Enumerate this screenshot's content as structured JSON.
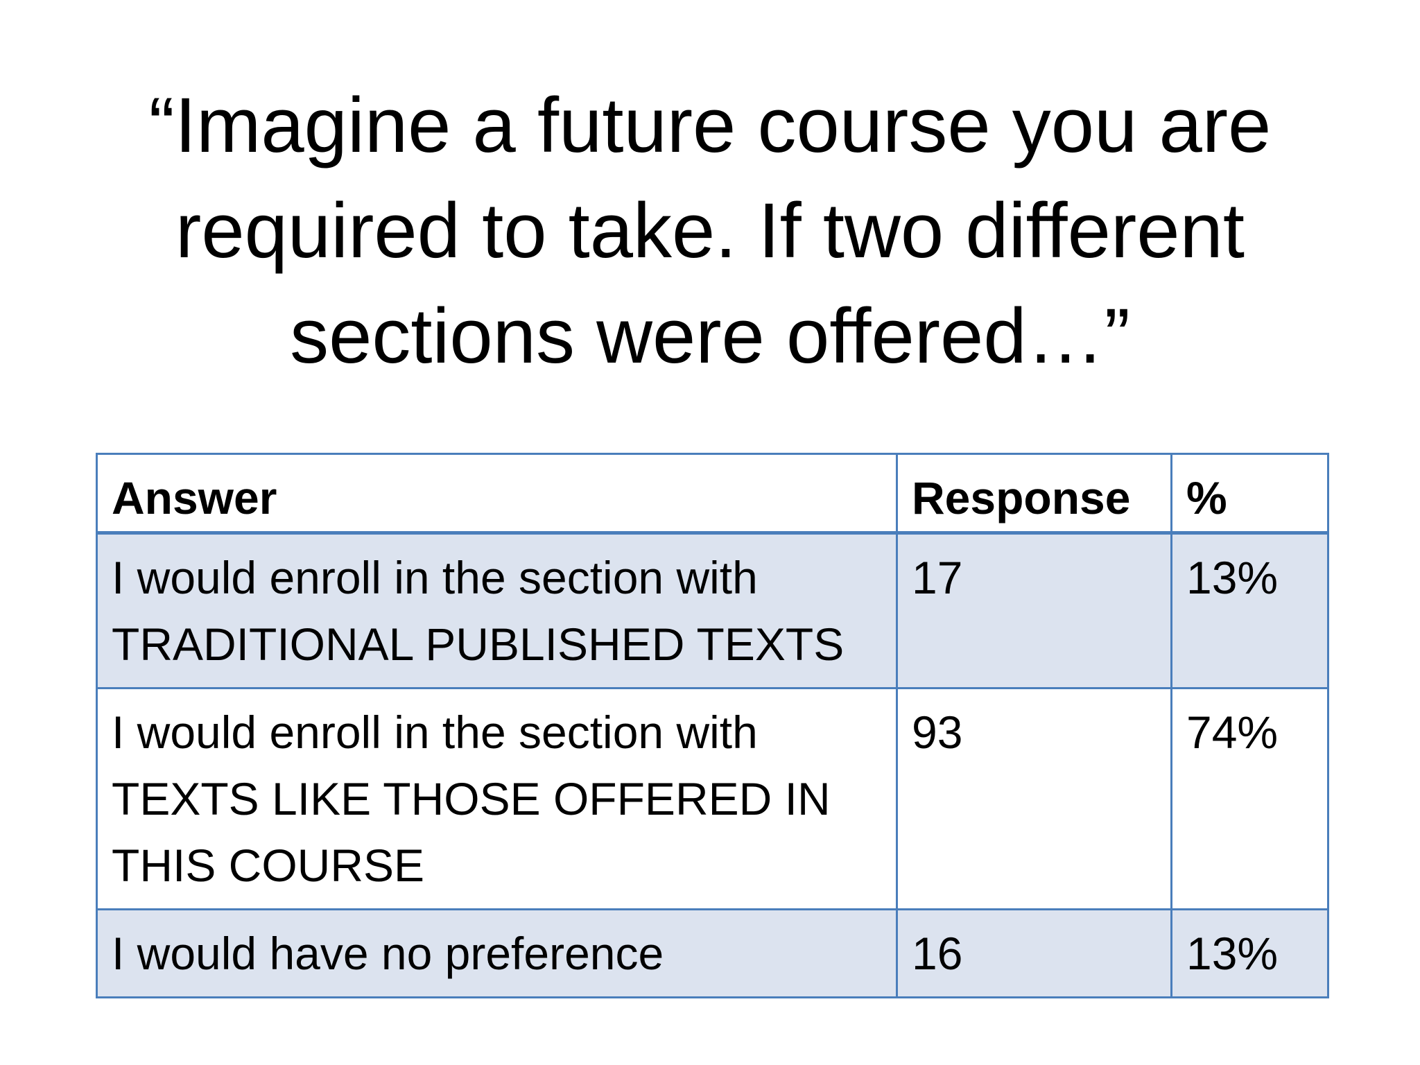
{
  "slide": {
    "title_lines": [
      "“Imagine a future course you are",
      "required to take. If two different",
      "sections were offered…”"
    ]
  },
  "table": {
    "headers": {
      "answer": "Answer",
      "response": "Response",
      "percent": "%"
    },
    "rows": [
      {
        "answer_lines": [
          "I would enroll in the section with",
          "TRADITIONAL PUBLISHED TEXTS"
        ],
        "response": "17",
        "percent": "13%"
      },
      {
        "answer_lines": [
          "I would enroll in the section with",
          "TEXTS LIKE THOSE OFFERED IN",
          "THIS COURSE"
        ],
        "response": "93",
        "percent": "74%"
      },
      {
        "answer_lines": [
          "I would have no preference"
        ],
        "response": "16",
        "percent": "13%"
      }
    ]
  },
  "colors": {
    "border": "#4a7ebb",
    "shaded_row": "#dce3ef"
  }
}
